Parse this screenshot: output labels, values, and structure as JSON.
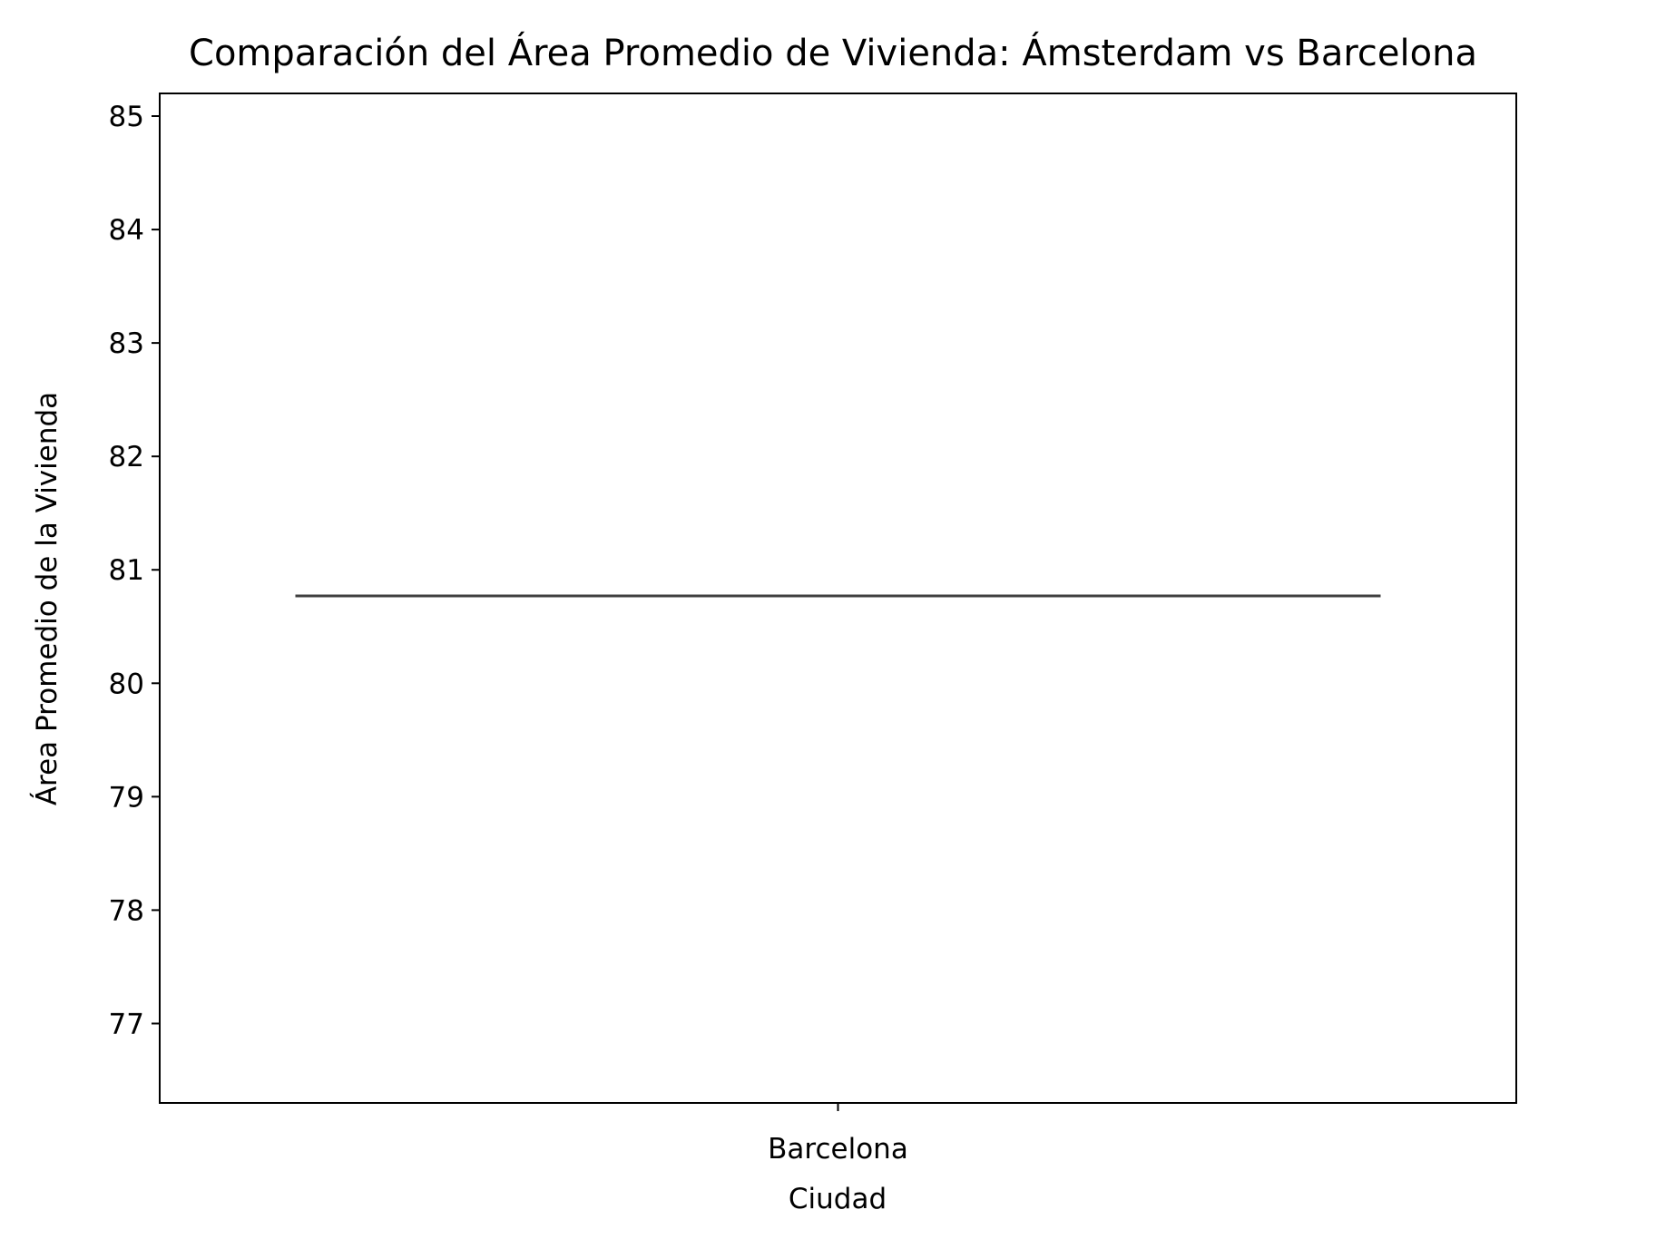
{
  "chart_data": {
    "type": "box",
    "title": "Comparación del Área Promedio de Vivienda: Ámsterdam vs Barcelona",
    "xlabel": "Ciudad",
    "ylabel": "Área Promedio de la Vivienda",
    "categories": [
      "Barcelona"
    ],
    "series": [
      {
        "values": [
          80.77
        ]
      }
    ],
    "ylim": [
      76.3,
      85.2
    ],
    "yticks": [
      77,
      78,
      79,
      80,
      81,
      82,
      83,
      84,
      85
    ],
    "grid": false,
    "colors": {
      "median_line": "#3f3f3f",
      "axes": "#000000",
      "background": "#ffffff"
    }
  }
}
